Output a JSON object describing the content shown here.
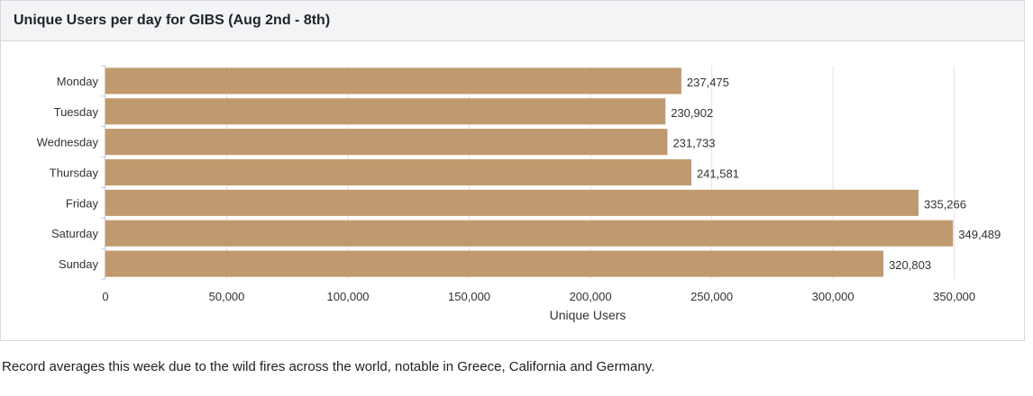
{
  "panel": {
    "title": "Unique Users per day for GIBS (Aug 2nd - 8th)"
  },
  "caption": "Record averages this week due to the wild fires across the world, notable in Greece, California and Germany.",
  "chart_data": {
    "type": "bar",
    "orientation": "horizontal",
    "title": "Unique Users per day for GIBS (Aug 2nd - 8th)",
    "categories": [
      "Monday",
      "Tuesday",
      "Wednesday",
      "Thursday",
      "Friday",
      "Saturday",
      "Sunday"
    ],
    "values": [
      237475,
      230902,
      231733,
      241581,
      335266,
      349489,
      320803
    ],
    "value_labels": [
      "237,475",
      "230,902",
      "231,733",
      "241,581",
      "335,266",
      "349,489",
      "320,803"
    ],
    "xlabel": "Unique Users",
    "ylabel": "",
    "xlim": [
      0,
      365000
    ],
    "x_ticks": [
      0,
      50000,
      100000,
      150000,
      200000,
      250000,
      300000,
      350000
    ],
    "x_tick_labels": [
      "0",
      "50,000",
      "100,000",
      "150,000",
      "200,000",
      "250,000",
      "300,000",
      "350,000"
    ],
    "grid": true,
    "bar_color": "#c09a6e",
    "grid_color": "#e4e4e4"
  }
}
